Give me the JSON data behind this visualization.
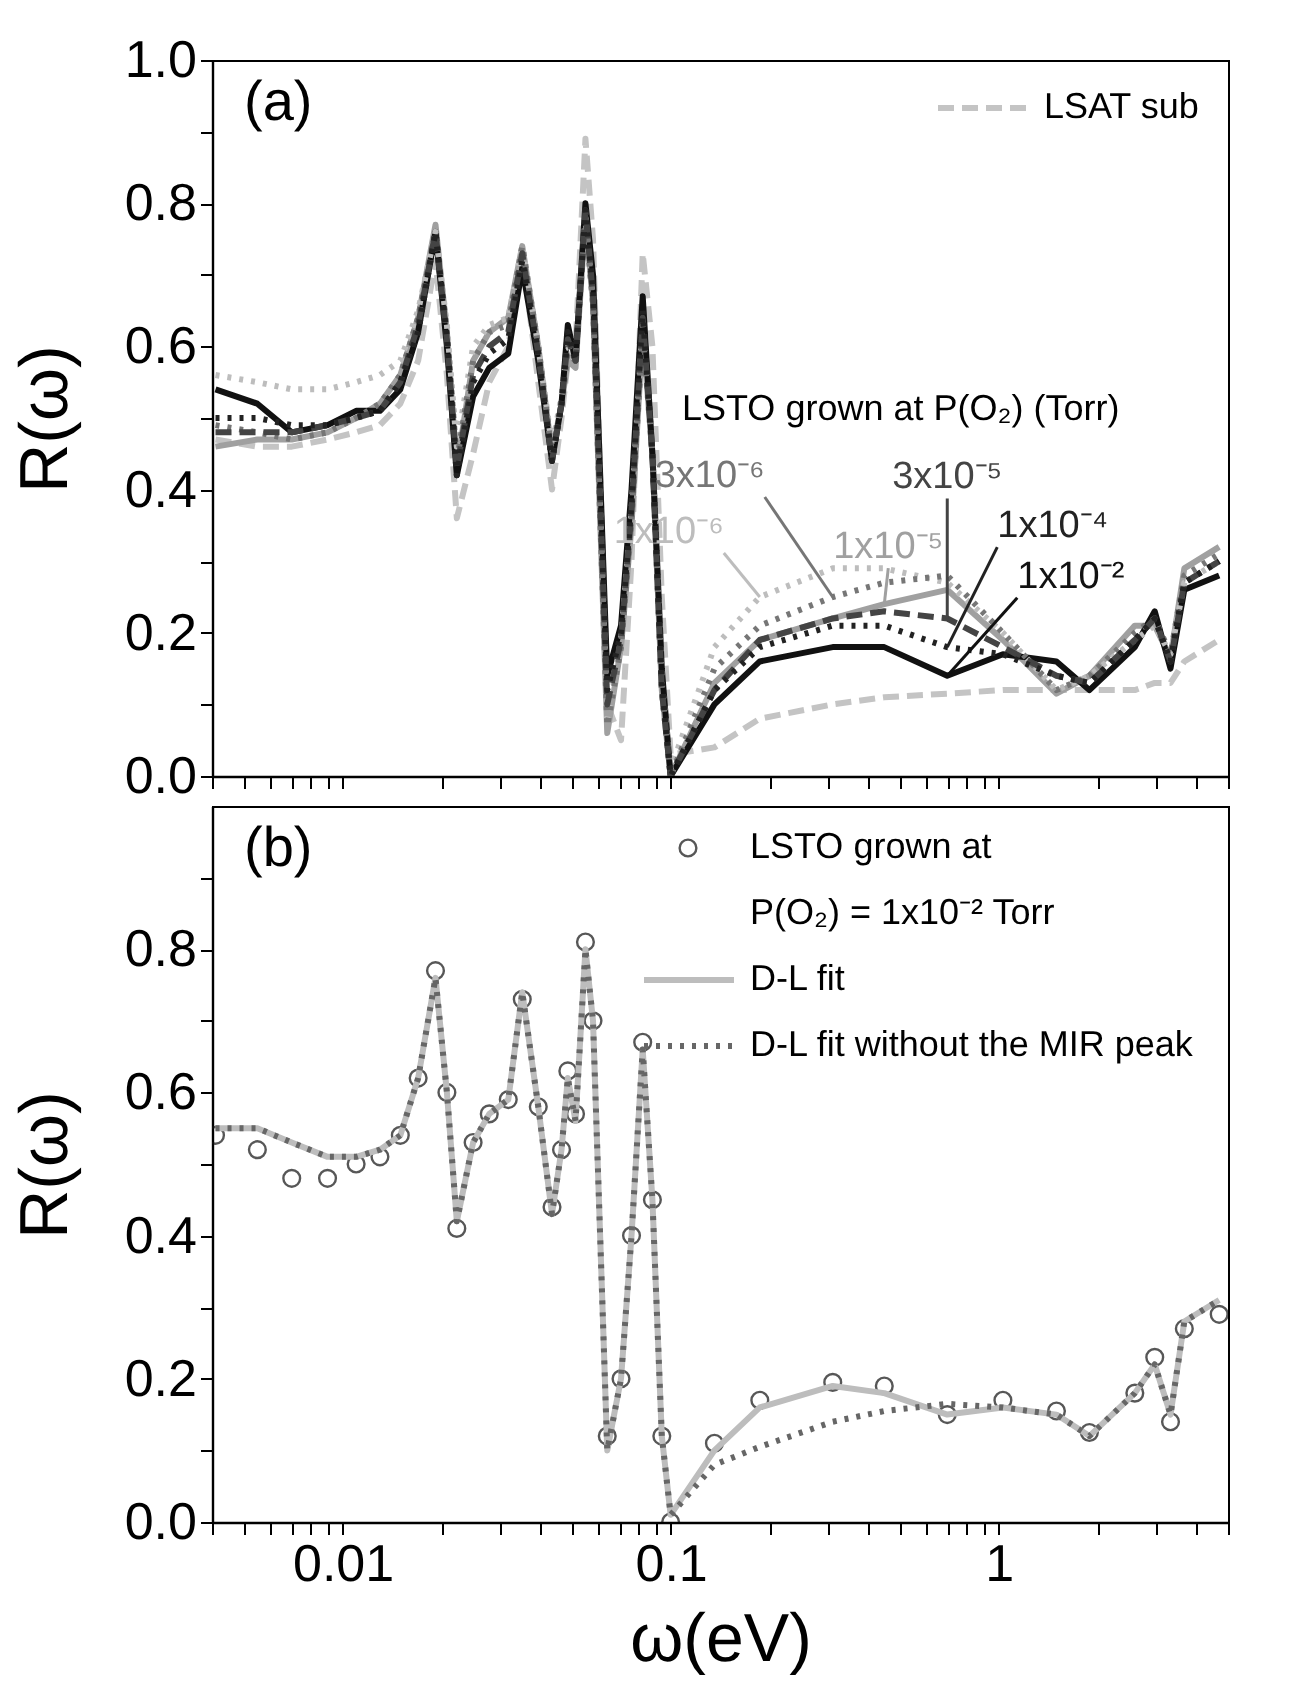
{
  "chart_data": [
    {
      "type": "line",
      "ylabel": "R(ω)",
      "log": "x",
      "tick_labels": "y",
      "legend": "top right",
      "annotations": [
        "(a)",
        "LSTO grown at P(O₂) (Torr)"
      ],
      "xlim": [
        0.004,
        5
      ],
      "ylim": [
        0,
        1
      ],
      "xticks": [
        {
          "value": 0.004,
          "label": null
        },
        {
          "value": 0.005,
          "label": null
        },
        {
          "value": 0.006,
          "label": null
        },
        {
          "value": 0.007,
          "label": null
        },
        {
          "value": 0.008,
          "label": null
        },
        {
          "value": 0.009,
          "label": null
        },
        0.01,
        {
          "value": 0.02,
          "label": null
        },
        {
          "value": 0.03,
          "label": null
        },
        {
          "value": 0.04,
          "label": null
        },
        {
          "value": 0.05,
          "label": null
        },
        {
          "value": 0.06,
          "label": null
        },
        {
          "value": 0.07,
          "label": null
        },
        {
          "value": 0.08,
          "label": null
        },
        {
          "value": 0.09,
          "label": null
        },
        0.1,
        {
          "value": 0.2,
          "label": null
        },
        {
          "value": 0.3,
          "label": null
        },
        {
          "value": 0.4,
          "label": null
        },
        {
          "value": 0.5,
          "label": null
        },
        {
          "value": 0.6,
          "label": null
        },
        {
          "value": 0.7,
          "label": null
        },
        {
          "value": 0.8,
          "label": null
        },
        {
          "value": 0.9,
          "label": null
        },
        1,
        {
          "value": 2,
          "label": null
        },
        {
          "value": 3,
          "label": null
        },
        {
          "value": 4,
          "label": null
        },
        {
          "value": 5,
          "label": null
        }
      ],
      "yticks": [
        {
          "value": 0,
          "label": "0.0"
        },
        {
          "value": 0.1,
          "label": null
        },
        0.2,
        {
          "value": 0.3,
          "label": null
        },
        0.4,
        {
          "value": 0.5,
          "label": null
        },
        0.6,
        {
          "value": 0.7,
          "label": null
        },
        0.8,
        {
          "value": 0.9,
          "label": null
        },
        {
          "value": 1,
          "label": "1.0"
        }
      ],
      "x": [
        0.0041,
        0.0055,
        0.007,
        0.009,
        0.011,
        0.013,
        0.015,
        0.017,
        0.0192,
        0.0208,
        0.0223,
        0.025,
        0.028,
        0.032,
        0.0353,
        0.0395,
        0.0435,
        0.0465,
        0.0486,
        0.0513,
        0.055,
        0.058,
        0.0641,
        0.0706,
        0.076,
        0.0822,
        0.088,
        0.094,
        0.1,
        0.136,
        0.187,
        0.312,
        0.448,
        0.697,
        1.03,
        1.5,
        1.89,
        2.6,
        2.99,
        3.34,
        3.68,
        4.7
      ],
      "series": [
        {
          "name": "LSAT sub",
          "color": "#c4c4c4",
          "line_style": "dashed",
          "values": [
            0.47,
            0.46,
            0.46,
            0.47,
            0.48,
            0.49,
            0.52,
            0.58,
            0.72,
            0.56,
            0.36,
            0.45,
            0.55,
            0.6,
            0.73,
            0.55,
            0.4,
            0.5,
            0.58,
            0.6,
            0.89,
            0.75,
            0.1,
            0.05,
            0.3,
            0.73,
            0.6,
            0.25,
            0.03,
            0.04,
            0.08,
            0.1,
            0.11,
            0.115,
            0.12,
            0.12,
            0.12,
            0.12,
            0.13,
            0.13,
            0.16,
            0.19
          ]
        },
        {
          "name": "1x10⁻⁵",
          "color": "#a0a0a0",
          "line_style": "solid",
          "values": [
            0.46,
            0.47,
            0.47,
            0.48,
            0.5,
            0.52,
            0.56,
            0.64,
            0.77,
            0.62,
            0.43,
            0.58,
            0.62,
            0.64,
            0.74,
            0.6,
            0.45,
            0.52,
            0.58,
            0.57,
            0.78,
            0.66,
            0.06,
            0.18,
            0.35,
            0.62,
            0.45,
            0.12,
            0.0,
            0.13,
            0.19,
            0.22,
            0.24,
            0.26,
            0.19,
            0.115,
            0.14,
            0.21,
            0.21,
            0.165,
            0.29,
            0.32
          ]
        },
        {
          "name": "1x10⁻²",
          "color": "#111111",
          "line_style": "solid",
          "values": [
            0.54,
            0.52,
            0.48,
            0.49,
            0.51,
            0.51,
            0.54,
            0.62,
            0.76,
            0.6,
            0.42,
            0.53,
            0.57,
            0.59,
            0.71,
            0.58,
            0.44,
            0.52,
            0.63,
            0.58,
            0.8,
            0.7,
            0.14,
            0.21,
            0.4,
            0.67,
            0.45,
            0.15,
            0.0,
            0.1,
            0.16,
            0.18,
            0.18,
            0.14,
            0.17,
            0.16,
            0.12,
            0.18,
            0.23,
            0.15,
            0.26,
            0.28
          ]
        },
        {
          "name": "1x10⁻⁶",
          "color": "#bdbdbd",
          "line_style": "dotted",
          "values": [
            0.56,
            0.55,
            0.54,
            0.54,
            0.55,
            0.56,
            0.58,
            0.65,
            0.76,
            0.63,
            0.46,
            0.6,
            0.63,
            0.64,
            0.74,
            0.6,
            0.46,
            0.53,
            0.6,
            0.58,
            0.78,
            0.66,
            0.08,
            0.19,
            0.37,
            0.63,
            0.45,
            0.13,
            0.01,
            0.18,
            0.25,
            0.29,
            0.29,
            0.27,
            0.2,
            0.12,
            0.14,
            0.19,
            0.21,
            0.17,
            0.27,
            0.3
          ]
        },
        {
          "name": "3x10⁻⁶",
          "color": "#767676",
          "line_style": "dotted",
          "values": [
            0.49,
            0.48,
            0.47,
            0.48,
            0.5,
            0.52,
            0.56,
            0.64,
            0.76,
            0.62,
            0.44,
            0.58,
            0.62,
            0.63,
            0.74,
            0.6,
            0.45,
            0.52,
            0.59,
            0.58,
            0.78,
            0.66,
            0.07,
            0.18,
            0.36,
            0.62,
            0.45,
            0.12,
            0.0,
            0.15,
            0.21,
            0.25,
            0.27,
            0.28,
            0.2,
            0.12,
            0.14,
            0.2,
            0.22,
            0.17,
            0.28,
            0.31
          ]
        },
        {
          "name": "3x10⁻⁵",
          "color": "#444444",
          "line_style": "dashed",
          "values": [
            0.48,
            0.48,
            0.48,
            0.49,
            0.5,
            0.51,
            0.55,
            0.63,
            0.76,
            0.61,
            0.43,
            0.56,
            0.6,
            0.62,
            0.73,
            0.59,
            0.44,
            0.52,
            0.61,
            0.58,
            0.79,
            0.67,
            0.1,
            0.19,
            0.37,
            0.64,
            0.45,
            0.12,
            0.0,
            0.12,
            0.19,
            0.22,
            0.23,
            0.22,
            0.18,
            0.14,
            0.13,
            0.19,
            0.22,
            0.16,
            0.27,
            0.3
          ]
        },
        {
          "name": "1x10⁻⁴",
          "color": "#222222",
          "line_style": "dotted",
          "values": [
            0.5,
            0.5,
            0.49,
            0.49,
            0.5,
            0.51,
            0.55,
            0.62,
            0.76,
            0.61,
            0.42,
            0.55,
            0.59,
            0.61,
            0.72,
            0.59,
            0.44,
            0.52,
            0.62,
            0.58,
            0.79,
            0.68,
            0.12,
            0.2,
            0.38,
            0.65,
            0.45,
            0.13,
            0.0,
            0.12,
            0.18,
            0.21,
            0.21,
            0.18,
            0.17,
            0.14,
            0.13,
            0.19,
            0.22,
            0.16,
            0.27,
            0.3
          ]
        }
      ]
    },
    {
      "type": "line",
      "ylabel": "R(ω)",
      "xlabel": "ω(eV)",
      "log": "x",
      "legend": "top right",
      "annotations": [
        "(b)"
      ],
      "xlim": [
        0.004,
        5
      ],
      "ylim": [
        0,
        1
      ],
      "xticks": [
        {
          "value": 0.004,
          "label": null
        },
        {
          "value": 0.005,
          "label": null
        },
        {
          "value": 0.006,
          "label": null
        },
        {
          "value": 0.007,
          "label": null
        },
        {
          "value": 0.008,
          "label": null
        },
        {
          "value": 0.009,
          "label": null
        },
        0.01,
        {
          "value": 0.02,
          "label": null
        },
        {
          "value": 0.03,
          "label": null
        },
        {
          "value": 0.04,
          "label": null
        },
        {
          "value": 0.05,
          "label": null
        },
        {
          "value": 0.06,
          "label": null
        },
        {
          "value": 0.07,
          "label": null
        },
        {
          "value": 0.08,
          "label": null
        },
        {
          "value": 0.09,
          "label": null
        },
        0.1,
        {
          "value": 0.2,
          "label": null
        },
        {
          "value": 0.3,
          "label": null
        },
        {
          "value": 0.4,
          "label": null
        },
        {
          "value": 0.5,
          "label": null
        },
        {
          "value": 0.6,
          "label": null
        },
        {
          "value": 0.7,
          "label": null
        },
        {
          "value": 0.8,
          "label": null
        },
        {
          "value": 0.9,
          "label": null
        },
        1,
        {
          "value": 2,
          "label": null
        },
        {
          "value": 3,
          "label": null
        },
        {
          "value": 4,
          "label": null
        },
        {
          "value": 5,
          "label": null
        }
      ],
      "yticks": [
        {
          "value": 0,
          "label": "0.0"
        },
        {
          "value": 0.1,
          "label": null
        },
        0.2,
        {
          "value": 0.3,
          "label": null
        },
        0.4,
        {
          "value": 0.5,
          "label": null
        },
        0.6,
        {
          "value": 0.7,
          "label": null
        },
        0.8,
        {
          "value": 0.9,
          "label": null
        }
      ],
      "x": [
        0.0041,
        0.0055,
        0.007,
        0.009,
        0.011,
        0.013,
        0.015,
        0.017,
        0.0192,
        0.0208,
        0.0223,
        0.025,
        0.028,
        0.032,
        0.0353,
        0.0395,
        0.0435,
        0.0465,
        0.0486,
        0.0513,
        0.055,
        0.058,
        0.0641,
        0.0706,
        0.076,
        0.0822,
        0.088,
        0.094,
        0.1,
        0.136,
        0.187,
        0.312,
        0.448,
        0.697,
        1.03,
        1.5,
        1.89,
        2.6,
        2.99,
        3.34,
        3.68,
        4.7
      ],
      "series": [
        {
          "name": "LSTO grown at\nP(O₂) = 1x10⁻² Torr",
          "type": "scatter",
          "marker": "circle",
          "color": "#111111",
          "values": [
            0.54,
            0.52,
            0.48,
            0.48,
            0.5,
            0.51,
            0.54,
            0.62,
            0.77,
            0.6,
            0.41,
            0.53,
            0.57,
            0.59,
            0.73,
            0.58,
            0.44,
            0.52,
            0.63,
            0.57,
            0.81,
            0.7,
            0.12,
            0.2,
            0.4,
            0.67,
            0.45,
            0.12,
            0.0,
            0.11,
            0.17,
            0.195,
            0.19,
            0.15,
            0.17,
            0.155,
            0.125,
            0.18,
            0.23,
            0.14,
            0.27,
            0.29
          ]
        },
        {
          "name": "D-L fit",
          "color": "#bdbdbd",
          "line_style": "solid",
          "values": [
            0.55,
            0.55,
            0.53,
            0.51,
            0.51,
            0.52,
            0.54,
            0.62,
            0.76,
            0.6,
            0.42,
            0.53,
            0.57,
            0.59,
            0.74,
            0.58,
            0.43,
            0.52,
            0.62,
            0.56,
            0.8,
            0.7,
            0.1,
            0.2,
            0.4,
            0.66,
            0.45,
            0.12,
            0.01,
            0.1,
            0.16,
            0.19,
            0.18,
            0.15,
            0.16,
            0.15,
            0.12,
            0.18,
            0.22,
            0.15,
            0.28,
            0.31
          ]
        },
        {
          "name": "D-L fit without the MIR peak",
          "color": "#666666",
          "line_style": "dotted",
          "values": [
            0.55,
            0.55,
            0.53,
            0.51,
            0.51,
            0.52,
            0.54,
            0.62,
            0.76,
            0.6,
            0.42,
            0.53,
            0.57,
            0.59,
            0.74,
            0.58,
            0.43,
            0.52,
            0.62,
            0.56,
            0.8,
            0.7,
            0.1,
            0.2,
            0.4,
            0.66,
            0.45,
            0.12,
            0.01,
            0.08,
            0.105,
            0.14,
            0.155,
            0.165,
            0.16,
            0.15,
            0.12,
            0.18,
            0.22,
            0.15,
            0.28,
            0.31
          ]
        }
      ]
    }
  ]
}
